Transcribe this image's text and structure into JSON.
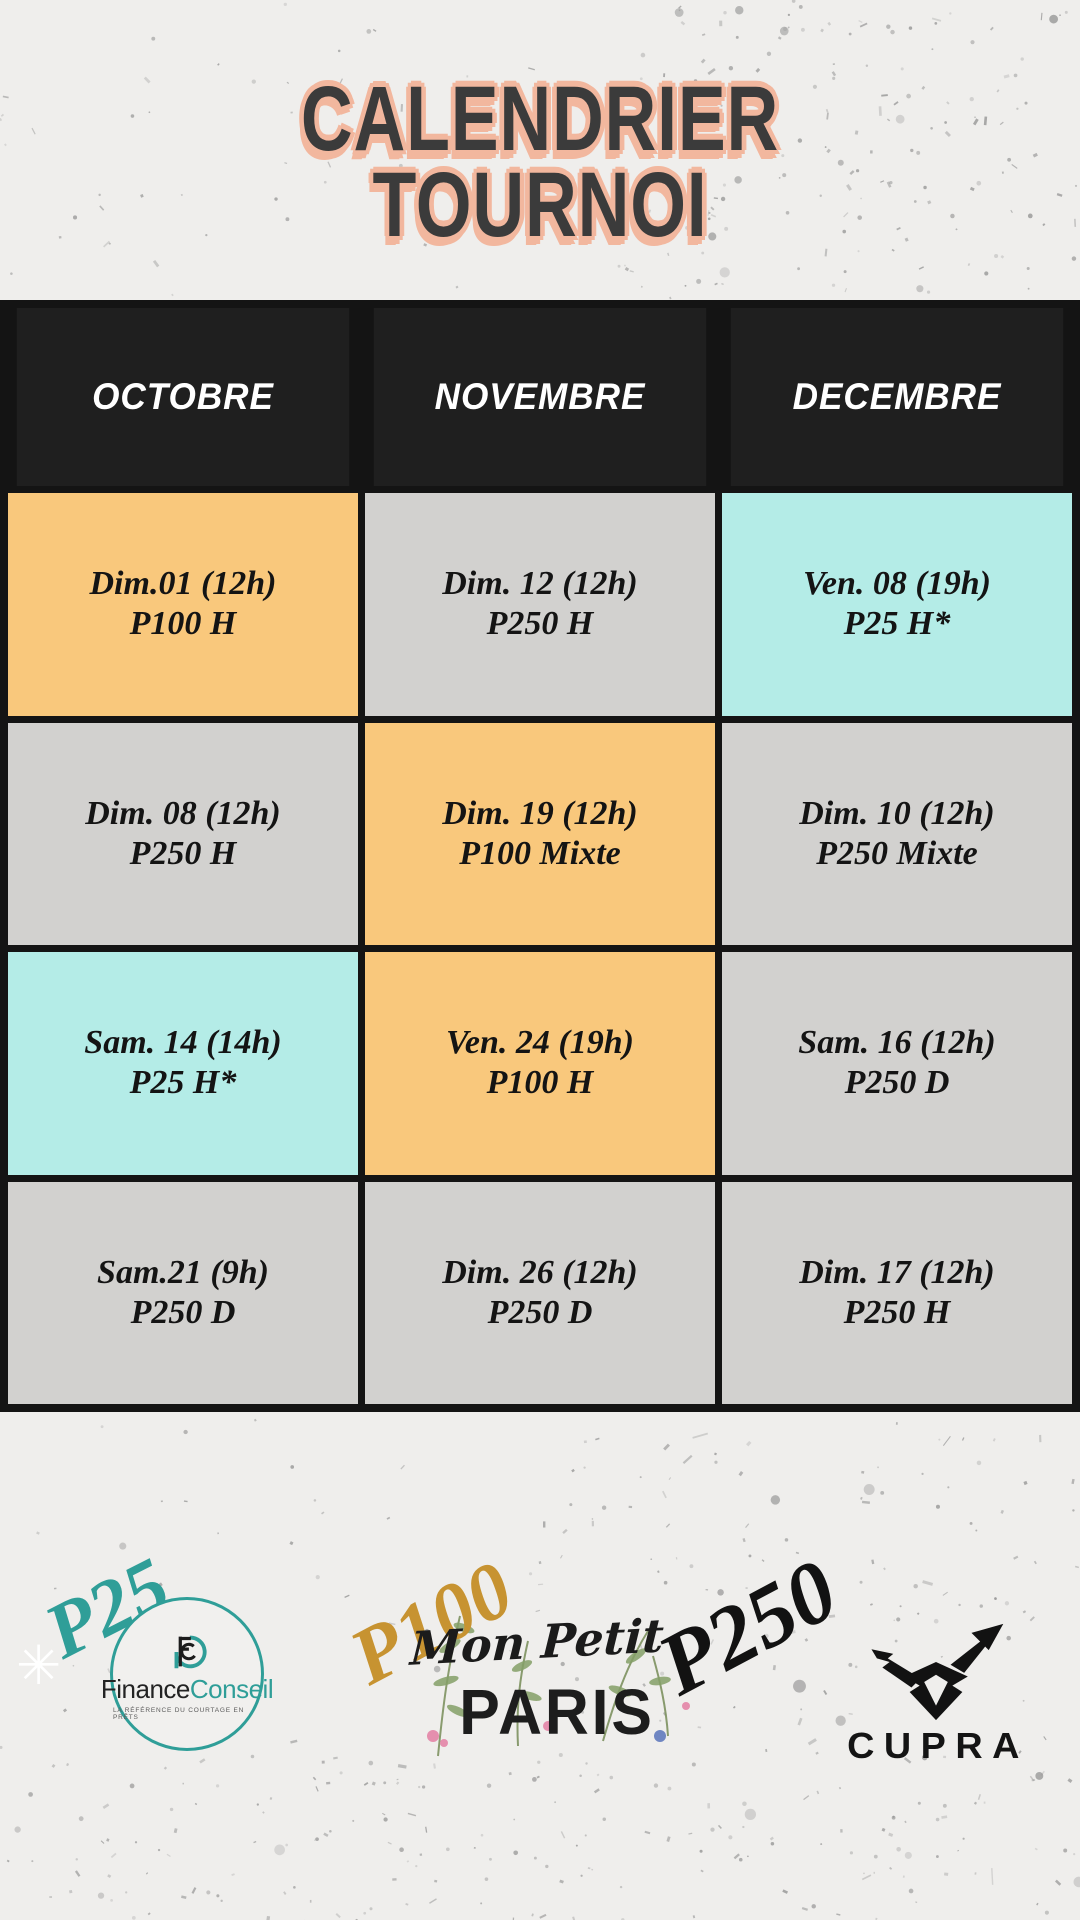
{
  "title": {
    "line1": "CALENDRIER",
    "line2": "TOURNOI"
  },
  "calendar": {
    "months": [
      "OCTOBRE",
      "NOVEMBRE",
      "DECEMBRE"
    ],
    "rows": [
      [
        {
          "date": "Dim.01 (12h)",
          "event": "P100 H",
          "color": "orange"
        },
        {
          "date": "Dim. 12 (12h)",
          "event": "P250 H",
          "color": "gray"
        },
        {
          "date": "Ven. 08 (19h)",
          "event": "P25 H*",
          "color": "cyan"
        }
      ],
      [
        {
          "date": "Dim. 08 (12h)",
          "event": "P250 H",
          "color": "gray"
        },
        {
          "date": "Dim. 19 (12h)",
          "event": "P100 Mixte",
          "color": "orange"
        },
        {
          "date": "Dim. 10 (12h)",
          "event": "P250 Mixte",
          "color": "gray"
        }
      ],
      [
        {
          "date": "Sam. 14 (14h)",
          "event": "P25 H*",
          "color": "cyan"
        },
        {
          "date": "Ven. 24 (19h)",
          "event": "P100 H",
          "color": "orange"
        },
        {
          "date": "Sam. 16 (12h)",
          "event": "P250 D",
          "color": "gray"
        }
      ],
      [
        {
          "date": "Sam.21 (9h)",
          "event": "P250 D",
          "color": "gray"
        },
        {
          "date": "Dim. 26 (12h)",
          "event": "P250 D",
          "color": "gray"
        },
        {
          "date": "Dim. 17 (12h)",
          "event": "P250 H",
          "color": "gray"
        }
      ]
    ]
  },
  "sponsors": {
    "p25": {
      "tier": "P25",
      "asterisk": "✳",
      "brand_first": "Finance",
      "brand_second": "Conseil",
      "tagline": "LA RÉFÉRENCE DU COURTAGE EN PRÊTS"
    },
    "p100": {
      "tier": "P100",
      "script": "Mon Petit",
      "brand": "PARIS"
    },
    "p250": {
      "tier": "P250",
      "brand": "CUPRA"
    }
  },
  "colors": {
    "background": "#efeeec",
    "header_black": "#1f1f1f",
    "cell_orange": "#f9c87c",
    "cell_gray": "#d2d1cf",
    "cell_cyan": "#b4ece7",
    "title_text": "#3b3b3b",
    "title_shadow": "#f2b79e",
    "teal": "#2f9e98",
    "gold": "#c79331"
  }
}
